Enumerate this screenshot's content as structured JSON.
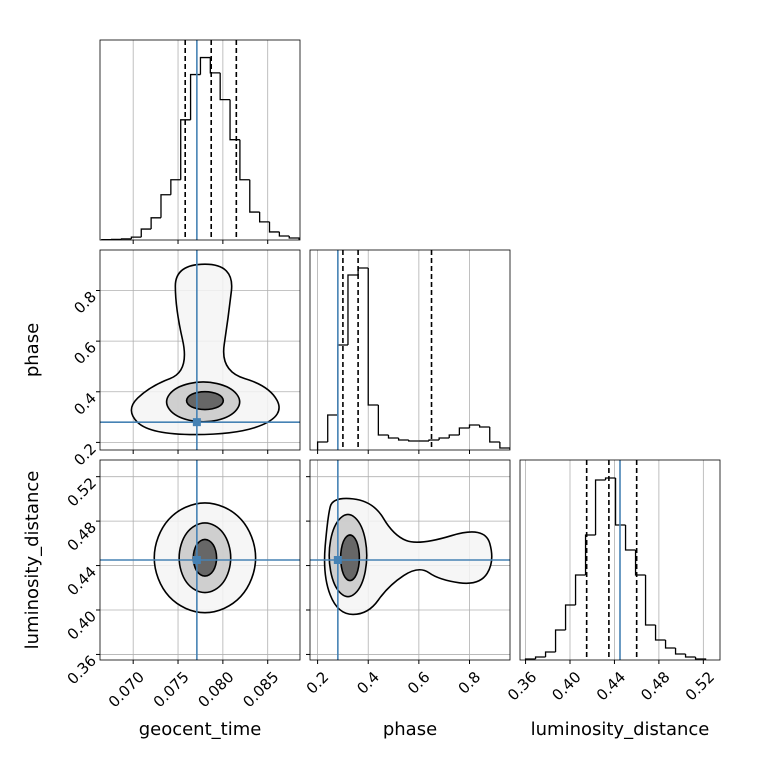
{
  "chart_data": {
    "type": "corner",
    "truth_color": "#4682b4",
    "grid": true,
    "parameters": [
      {
        "name": "geocent_time",
        "truth": 0.0771,
        "quantiles": [
          0.0758,
          0.0787,
          0.0815
        ],
        "lim": [
          0.0663,
          0.0886
        ],
        "ticks": [
          {
            "value": 0.07,
            "label": "0.070"
          },
          0.075,
          {
            "value": 0.08,
            "label": "0.080"
          },
          0.085
        ],
        "bins": [
          0.0665,
          0.0676,
          0.0687,
          0.0698,
          0.0709,
          0.072,
          0.0731,
          0.0742,
          0.0753,
          0.0764,
          0.0775,
          0.0786,
          0.0797,
          0.0808,
          0.0819,
          0.083,
          0.0841,
          0.0852,
          0.0863,
          0.0874,
          0.0885
        ],
        "counts": [
          1,
          2,
          4,
          10,
          38,
          77,
          157,
          209,
          417,
          574,
          633,
          580,
          487,
          348,
          209,
          97,
          63,
          28,
          14,
          7
        ],
        "hist_ylim": [
          0,
          694
        ],
        "contours": []
      },
      {
        "name": "phase",
        "truth": 0.28,
        "quantiles": [
          0.3,
          0.36,
          0.65
        ],
        "lim": [
          0.17,
          0.96
        ],
        "ticks": [
          0.2,
          0.4,
          0.6,
          0.8
        ],
        "bins": [
          0.2,
          0.24,
          0.28,
          0.32,
          0.36,
          0.4,
          0.44,
          0.48,
          0.52,
          0.56,
          0.6,
          0.64,
          0.68,
          0.72,
          0.76,
          0.8,
          0.84,
          0.88,
          0.92,
          0.96
        ],
        "counts": [
          8,
          35,
          105,
          175,
          182,
          45,
          15,
          12,
          10,
          9,
          9,
          10,
          12,
          15,
          22,
          25,
          23,
          8,
          2
        ],
        "hist_ylim": [
          0,
          200
        ],
        "contours": [
          [
            {
              "x": [
                0.0747,
                0.0813,
                0.0806,
                0.0797,
                0.0852,
                0.0869,
                0.0819,
                0.0719,
                0.0691,
                0.0719,
                0.0763,
                0.0747
              ],
              "y": [
                0.904,
                0.904,
                0.692,
                0.481,
                0.423,
                0.308,
                0.231,
                0.231,
                0.327,
                0.423,
                0.481,
                0.731
              ]
            },
            {
              "x": [
                0.0822,
                0.0809,
                0.0778,
                0.0747,
                0.0734,
                0.0747,
                0.0778,
                0.0809
              ],
              "y": [
                0.36,
                0.42,
                0.445,
                0.42,
                0.36,
                0.3,
                0.275,
                0.3
              ]
            },
            {
              "x": [
                0.0802,
                0.0796,
                0.078,
                0.0764,
                0.0758,
                0.0764,
                0.078,
                0.0796
              ],
              "y": [
                0.365,
                0.392,
                0.403,
                0.392,
                0.365,
                0.338,
                0.327,
                0.338
              ]
            }
          ]
        ]
      },
      {
        "name": "luminosity_distance",
        "truth": 0.445,
        "quantiles": [
          0.415,
          0.435,
          0.46
        ],
        "lim": [
          0.355,
          0.535
        ],
        "ticks": [
          0.36,
          {
            "value": 0.4,
            "label": "0.40"
          },
          0.44,
          0.48,
          0.52
        ],
        "bins": [
          0.36,
          0.369,
          0.378,
          0.387,
          0.396,
          0.405,
          0.414,
          0.423,
          0.432,
          0.441,
          0.45,
          0.459,
          0.468,
          0.477,
          0.486,
          0.495,
          0.504,
          0.513,
          0.522
        ],
        "counts": [
          1,
          3,
          8,
          30,
          55,
          85,
          125,
          180,
          182,
          135,
          110,
          85,
          35,
          20,
          12,
          6,
          3,
          1
        ],
        "hist_ylim": [
          0,
          200
        ],
        "contours": [
          [
            {
              "x": [
                0.0841,
                0.0823,
                0.078,
                0.0737,
                0.0719,
                0.0737,
                0.078,
                0.0823
              ],
              "y": [
                0.447,
                0.4847,
                0.5003,
                0.4847,
                0.447,
                0.4093,
                0.3937,
                0.4093
              ]
            },
            {
              "x": [
                0.0811,
                0.0802,
                0.078,
                0.0758,
                0.0749,
                0.0758,
                0.078,
                0.0802
              ],
              "y": [
                0.447,
                0.4709,
                0.4808,
                0.4709,
                0.447,
                0.4231,
                0.4132,
                0.4231
              ]
            },
            {
              "x": [
                0.0794,
                0.079,
                0.078,
                0.077,
                0.0766,
                0.077,
                0.078,
                0.079
              ],
              "y": [
                0.447,
                0.4596,
                0.4648,
                0.4596,
                0.447,
                0.4344,
                0.4292,
                0.4344
              ]
            }
          ],
          [
            {
              "x": [
                0.26,
                0.42,
                0.5,
                0.6,
                0.86,
                0.9,
                0.84,
                0.68,
                0.6,
                0.48,
                0.4,
                0.28,
                0.22,
                0.24
              ],
              "y": [
                0.502,
                0.498,
                0.467,
                0.458,
                0.476,
                0.444,
                0.422,
                0.427,
                0.44,
                0.422,
                0.396,
                0.396,
                0.431,
                0.484
              ]
            },
            {
              "x": [
                0.4,
                0.377,
                0.32,
                0.263,
                0.24,
                0.263,
                0.32,
                0.377
              ],
              "y": [
                0.449,
                0.477,
                0.489,
                0.477,
                0.449,
                0.421,
                0.409,
                0.421
              ]
            },
            {
              "x": [
                0.368,
                0.356,
                0.328,
                0.3,
                0.288,
                0.3,
                0.328,
                0.356
              ],
              "y": [
                0.447,
                0.463,
                0.469,
                0.463,
                0.447,
                0.431,
                0.425,
                0.431
              ]
            }
          ]
        ]
      }
    ]
  }
}
